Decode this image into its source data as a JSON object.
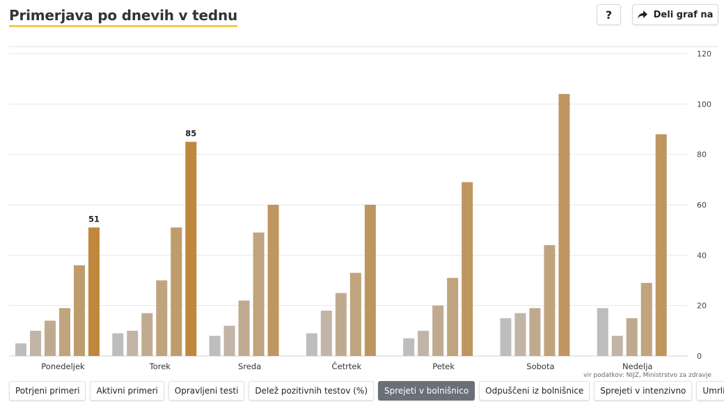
{
  "header": {
    "title": "Primerjava po dnevih v tednu",
    "help_label": "?",
    "share_label": "Deli graf na"
  },
  "source": "vir podatkov: NIJZ, Ministrstvo za zdravje",
  "tabs": [
    {
      "label": "Potrjeni primeri",
      "active": false
    },
    {
      "label": "Aktivni primeri",
      "active": false
    },
    {
      "label": "Opravljeni testi",
      "active": false
    },
    {
      "label": "Delež pozitivnih testov (%)",
      "active": false
    },
    {
      "label": "Sprejeti v bolnišnico",
      "active": true
    },
    {
      "label": "Odpuščeni iz bolnišnice",
      "active": false
    },
    {
      "label": "Sprejeti v intenzivno",
      "active": false
    },
    {
      "label": "Umrli",
      "active": false
    }
  ],
  "chart_data": {
    "type": "bar",
    "title": "Primerjava po dnevih v tednu",
    "xlabel": "",
    "ylabel": "",
    "ylim": [
      0,
      120
    ],
    "yticks": [
      0,
      20,
      40,
      60,
      80,
      100,
      120
    ],
    "y_axis_side": "right",
    "grid": true,
    "categories": [
      "Ponedeljek",
      "Torek",
      "Sreda",
      "Četrtek",
      "Petek",
      "Sobota",
      "Nedelja"
    ],
    "series_colors": [
      "#bdbdbd",
      "#c2b4a6",
      "#c0aa8f",
      "#bfa47e",
      "#be9c6b",
      "#c0883c"
    ],
    "values": [
      [
        5,
        10,
        14,
        19,
        36,
        51
      ],
      [
        9,
        10,
        17,
        30,
        51,
        85
      ],
      [
        8,
        12,
        22,
        49,
        60
      ],
      [
        9,
        18,
        25,
        33,
        60
      ],
      [
        7,
        10,
        20,
        31,
        69
      ],
      [
        15,
        17,
        19,
        44,
        104
      ],
      [
        19,
        8,
        15,
        29,
        88
      ]
    ],
    "data_labels": [
      {
        "category": "Ponedeljek",
        "value": 51
      },
      {
        "category": "Torek",
        "value": 85
      }
    ]
  }
}
